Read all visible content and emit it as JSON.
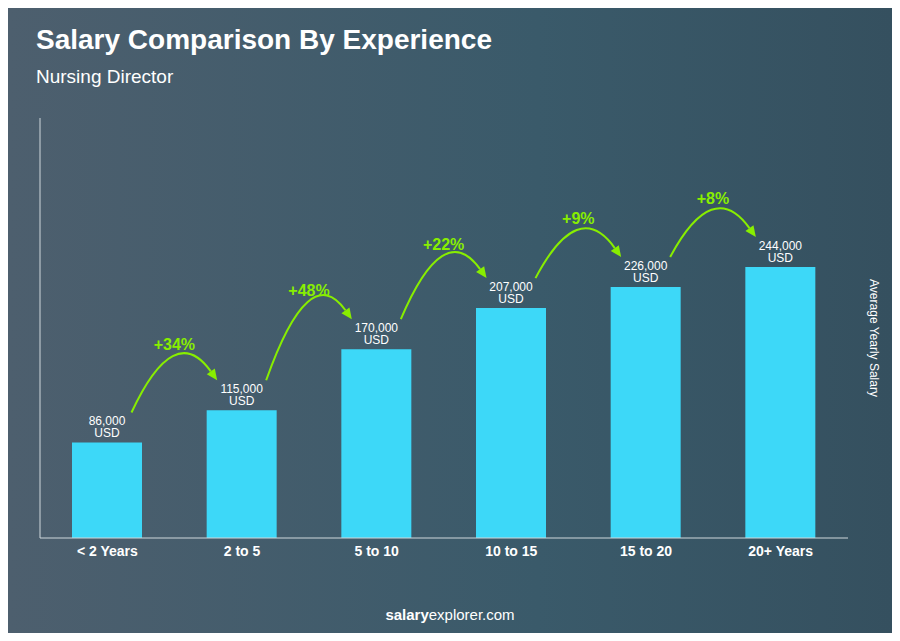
{
  "chart_data": {
    "type": "bar",
    "title": "Salary Comparison By Experience",
    "subtitle": "Nursing Director",
    "ylabel": "Average Yearly Salary",
    "watermark": [
      "salary",
      "explorer.com"
    ],
    "categories": [
      "< 2 Years",
      "2 to 5",
      "5 to 10",
      "10 to 15",
      "15 to 20",
      "20+ Years"
    ],
    "values": [
      86000,
      115000,
      170000,
      207000,
      226000,
      244000
    ],
    "value_labels": [
      "86,000 USD",
      "115,000 USD",
      "170,000 USD",
      "207,000 USD",
      "226,000 USD",
      "244,000 USD"
    ],
    "data_labels": true,
    "annotations": [
      {
        "text": "+34%",
        "color": "#88ee00"
      },
      {
        "text": "+48%",
        "color": "#88ee00"
      },
      {
        "text": "+22%",
        "color": "#88ee00"
      },
      {
        "text": "+9%",
        "color": "#88ee00"
      },
      {
        "text": "+8%",
        "color": "#88ee00"
      }
    ],
    "color": "#3DD8F8",
    "ylim": [
      0,
      378200
    ],
    "grid": false,
    "tick_labels": "x"
  }
}
